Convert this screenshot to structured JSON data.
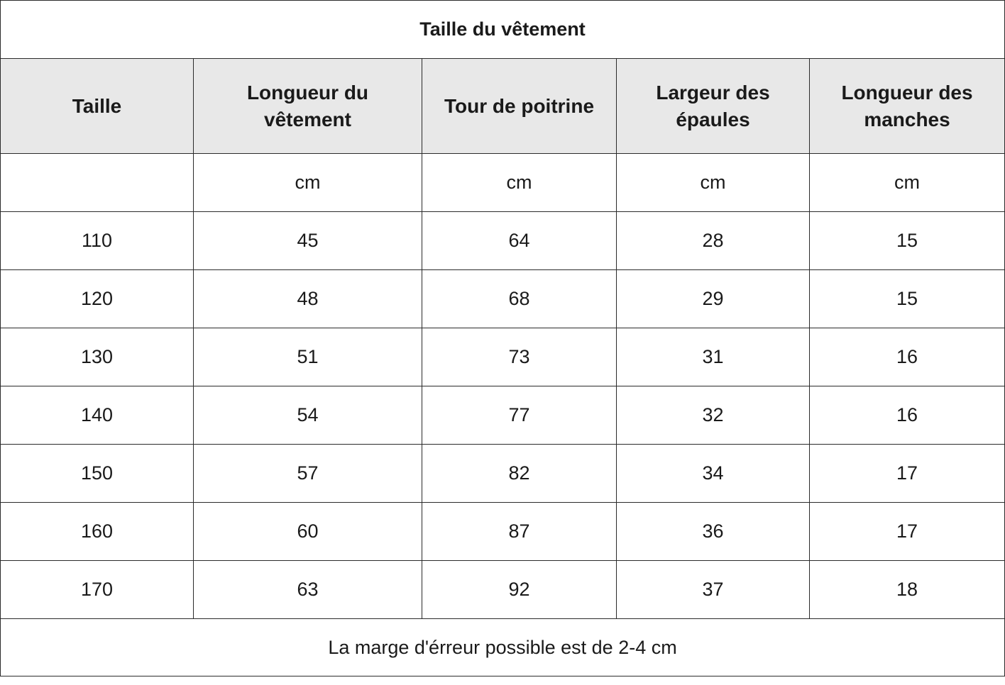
{
  "title": "Taille du vêtement",
  "headers": [
    "Taille",
    "Longueur du vêtement",
    "Tour de poitrine",
    "Largeur des épaules",
    "Longueur des manches"
  ],
  "units": [
    "",
    "cm",
    "cm",
    "cm",
    "cm"
  ],
  "rows": [
    [
      "110",
      "45",
      "64",
      "28",
      "15"
    ],
    [
      "120",
      "48",
      "68",
      "29",
      "15"
    ],
    [
      "130",
      "51",
      "73",
      "31",
      "16"
    ],
    [
      "140",
      "54",
      "77",
      "32",
      "16"
    ],
    [
      "150",
      "57",
      "82",
      "34",
      "17"
    ],
    [
      "160",
      "60",
      "87",
      "36",
      "17"
    ],
    [
      "170",
      "63",
      "92",
      "37",
      "18"
    ]
  ],
  "note": "La marge d'érreur possible est de 2-4 cm",
  "colors": {
    "header_bg": "#e8e8e8",
    "border": "#2b2b2b",
    "text": "#1a1a1a"
  }
}
